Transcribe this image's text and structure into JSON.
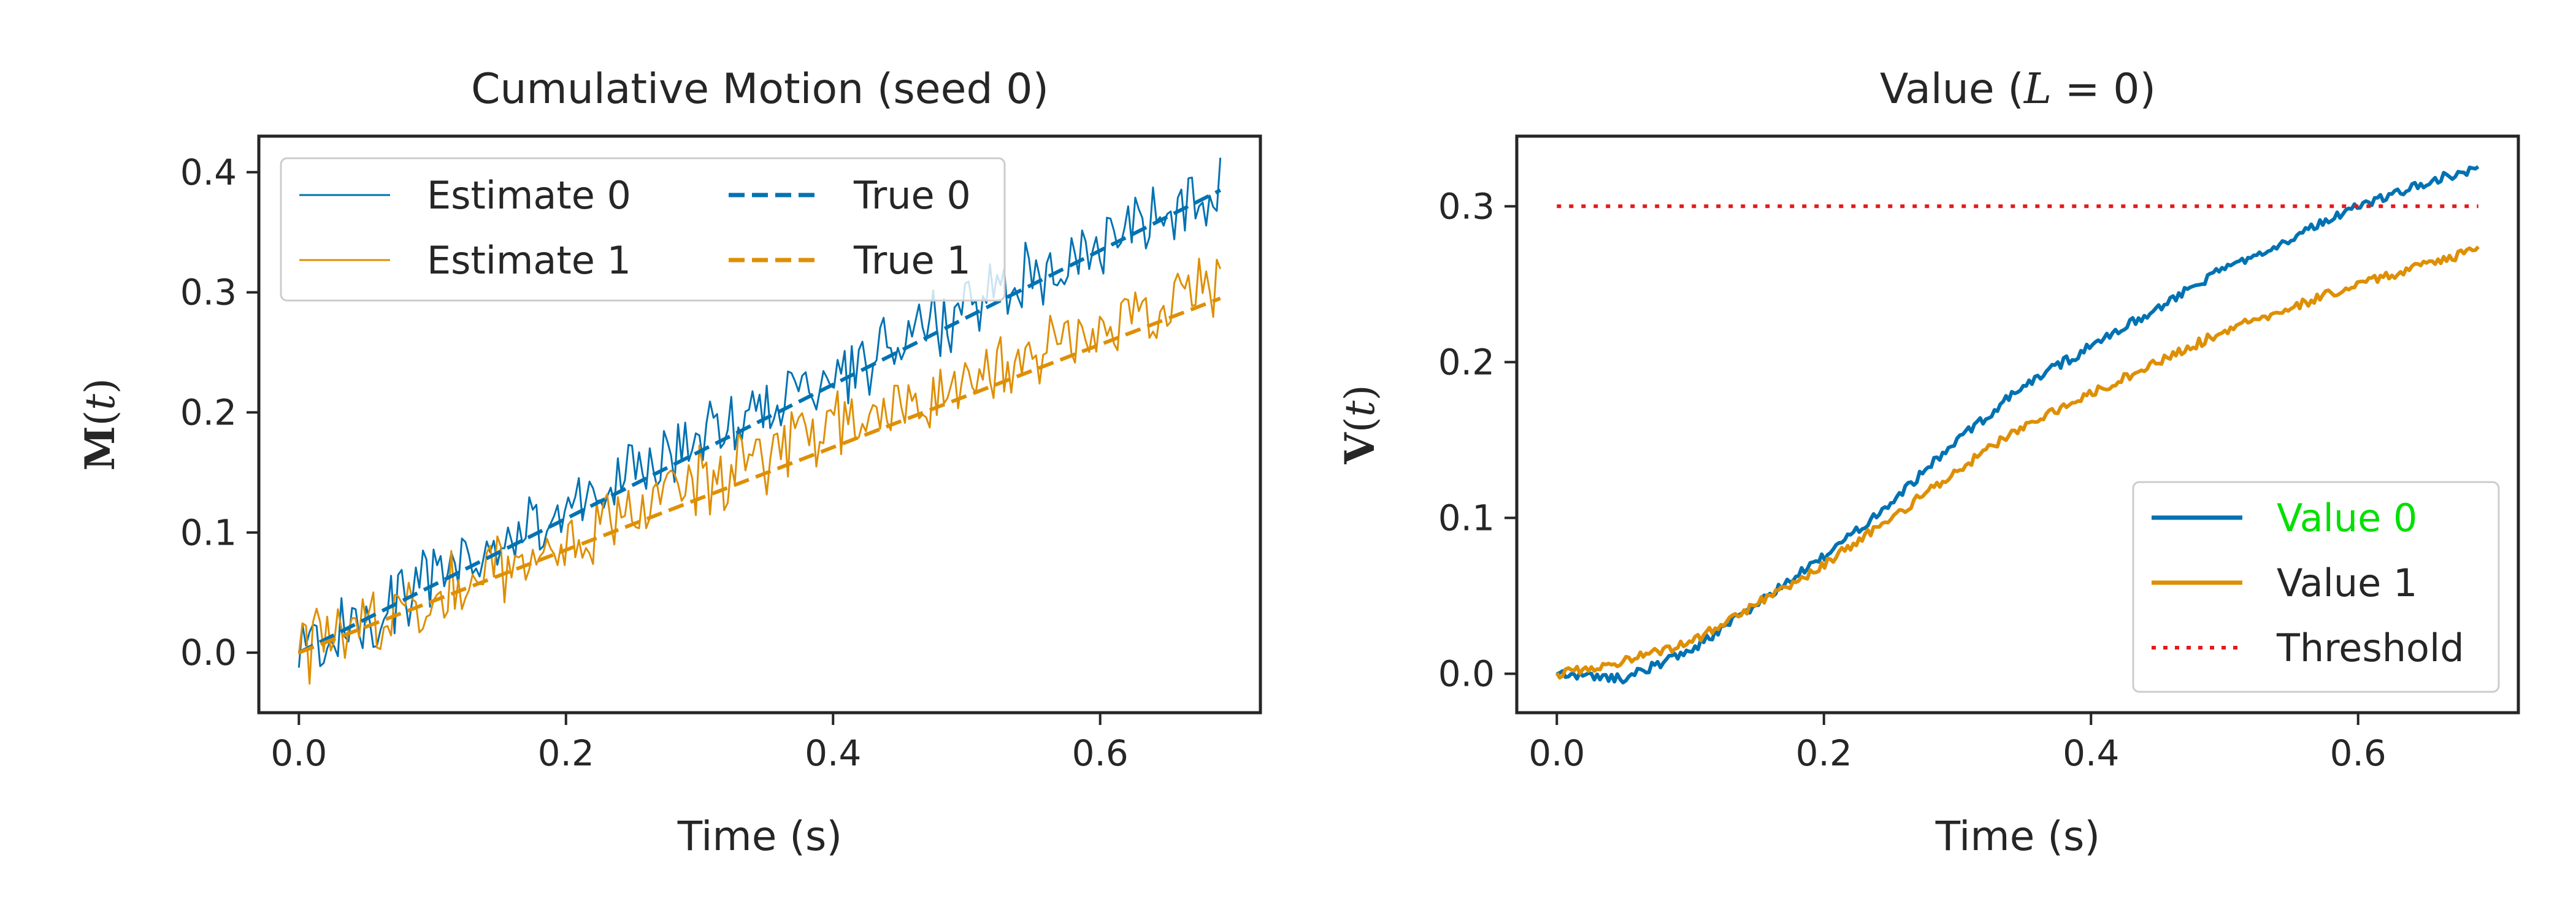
{
  "colors": {
    "series0": "#0072b2",
    "series1": "#de8f05",
    "threshold": "#e31a1c",
    "legend_highlight": "#00e000",
    "axes": "#262626"
  },
  "chart_data": [
    {
      "type": "line",
      "title": "Cumulative Motion (seed 0)",
      "xlabel": "Time (s)",
      "ylabel": "M(t)",
      "xlim": [
        -0.03,
        0.72
      ],
      "ylim": [
        -0.05,
        0.43
      ],
      "xticks": [
        0.0,
        0.2,
        0.4,
        0.6
      ],
      "xtick_labels": [
        "0.0",
        "0.2",
        "0.4",
        "0.6"
      ],
      "yticks": [
        0.0,
        0.1,
        0.2,
        0.3,
        0.4
      ],
      "ytick_labels": [
        "0.0",
        "0.1",
        "0.2",
        "0.3",
        "0.4"
      ],
      "grid": false,
      "legend": {
        "placement": "upper-left",
        "columns": 2
      },
      "series": [
        {
          "name": "Estimate 0",
          "style": "thin-solid",
          "color": "#0072b2",
          "x_range": [
            0.0,
            0.69
          ],
          "points": [
            [
              0.0,
              0.0
            ],
            [
              0.1,
              0.06
            ],
            [
              0.2,
              0.12
            ],
            [
              0.3,
              0.18
            ],
            [
              0.4,
              0.23
            ],
            [
              0.5,
              0.29
            ],
            [
              0.6,
              0.34
            ],
            [
              0.69,
              0.39
            ]
          ]
        },
        {
          "name": "Estimate 1",
          "style": "thin-solid",
          "color": "#de8f05",
          "x_range": [
            0.0,
            0.69
          ],
          "points": [
            [
              0.0,
              0.0
            ],
            [
              0.1,
              0.05
            ],
            [
              0.2,
              0.09
            ],
            [
              0.3,
              0.14
            ],
            [
              0.4,
              0.19
            ],
            [
              0.5,
              0.22
            ],
            [
              0.6,
              0.27
            ],
            [
              0.69,
              0.31
            ]
          ]
        },
        {
          "name": "True 0",
          "style": "dashed",
          "color": "#0072b2",
          "points": [
            [
              0.0,
              0.0
            ],
            [
              0.69,
              0.385
            ]
          ]
        },
        {
          "name": "True 1",
          "style": "dashed",
          "color": "#de8f05",
          "points": [
            [
              0.0,
              0.0
            ],
            [
              0.69,
              0.295
            ]
          ]
        }
      ]
    },
    {
      "type": "line",
      "title": "Value (L = 0)",
      "xlabel": "Time (s)",
      "ylabel": "V(t)",
      "xlim": [
        -0.03,
        0.72
      ],
      "ylim": [
        -0.025,
        0.345
      ],
      "xticks": [
        0.0,
        0.2,
        0.4,
        0.6
      ],
      "xtick_labels": [
        "0.0",
        "0.2",
        "0.4",
        "0.6"
      ],
      "yticks": [
        0.0,
        0.1,
        0.2,
        0.3
      ],
      "ytick_labels": [
        "0.0",
        "0.1",
        "0.2",
        "0.3"
      ],
      "grid": false,
      "legend": {
        "placement": "lower-right",
        "columns": 1
      },
      "series": [
        {
          "name": "Value 0",
          "style": "solid",
          "color": "#0072b2",
          "points": [
            [
              0.0,
              0.0
            ],
            [
              0.05,
              -0.003
            ],
            [
              0.1,
              0.015
            ],
            [
              0.15,
              0.045
            ],
            [
              0.2,
              0.075
            ],
            [
              0.25,
              0.11
            ],
            [
              0.3,
              0.15
            ],
            [
              0.35,
              0.185
            ],
            [
              0.4,
              0.21
            ],
            [
              0.45,
              0.235
            ],
            [
              0.5,
              0.26
            ],
            [
              0.55,
              0.28
            ],
            [
              0.6,
              0.3
            ],
            [
              0.65,
              0.315
            ],
            [
              0.69,
              0.325
            ]
          ]
        },
        {
          "name": "Value 1",
          "style": "solid",
          "color": "#de8f05",
          "points": [
            [
              0.0,
              0.0
            ],
            [
              0.05,
              0.008
            ],
            [
              0.1,
              0.02
            ],
            [
              0.15,
              0.045
            ],
            [
              0.2,
              0.07
            ],
            [
              0.25,
              0.1
            ],
            [
              0.3,
              0.13
            ],
            [
              0.35,
              0.16
            ],
            [
              0.4,
              0.18
            ],
            [
              0.45,
              0.2
            ],
            [
              0.5,
              0.22
            ],
            [
              0.55,
              0.235
            ],
            [
              0.6,
              0.25
            ],
            [
              0.65,
              0.262
            ],
            [
              0.69,
              0.272
            ]
          ]
        },
        {
          "name": "Threshold",
          "style": "dotted",
          "color": "#e31a1c",
          "points": [
            [
              0.0,
              0.3
            ],
            [
              0.69,
              0.3
            ]
          ]
        }
      ]
    }
  ]
}
